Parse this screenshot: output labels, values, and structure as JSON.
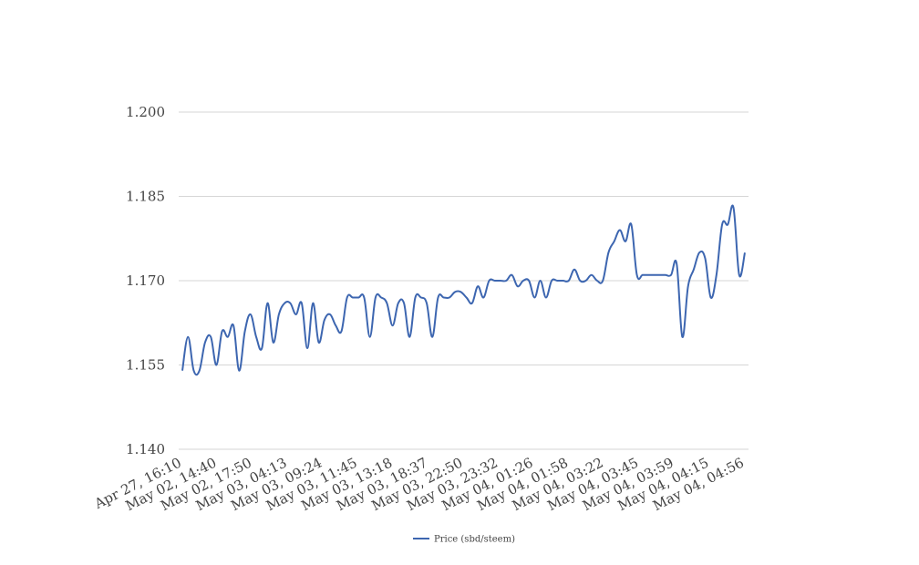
{
  "chart_data": {
    "type": "line",
    "title": "",
    "xlabel": "",
    "ylabel": "",
    "ylim": [
      1.14,
      1.2
    ],
    "y_ticks": [
      "1.140",
      "1.155",
      "1.170",
      "1.185",
      "1.200"
    ],
    "x_tick_labels": [
      "Apr 27, 16:10",
      "May 02, 14:40",
      "May 02, 17:50",
      "May 03, 04:13",
      "May 03, 09:24",
      "May 03, 11:45",
      "May 03, 13:18",
      "May 03, 18:37",
      "May 03, 22:50",
      "May 03, 23:32",
      "May 04, 01:26",
      "May 04, 01:58",
      "May 04, 03:22",
      "May 04, 03:45",
      "May 04, 03:59",
      "May 04, 04:15",
      "May 04, 04:56"
    ],
    "grid": true,
    "legend_position": "bottom-center",
    "series": [
      {
        "name": "Price (sbd/steem)",
        "color": "#3d66b0",
        "values": [
          1.154,
          1.16,
          1.154,
          1.154,
          1.159,
          1.16,
          1.155,
          1.161,
          1.16,
          1.162,
          1.154,
          1.161,
          1.164,
          1.16,
          1.158,
          1.166,
          1.159,
          1.164,
          1.166,
          1.166,
          1.164,
          1.166,
          1.158,
          1.166,
          1.159,
          1.163,
          1.164,
          1.162,
          1.161,
          1.167,
          1.167,
          1.167,
          1.167,
          1.16,
          1.167,
          1.167,
          1.166,
          1.162,
          1.166,
          1.166,
          1.16,
          1.167,
          1.167,
          1.166,
          1.16,
          1.167,
          1.167,
          1.167,
          1.168,
          1.168,
          1.167,
          1.166,
          1.169,
          1.167,
          1.17,
          1.17,
          1.17,
          1.17,
          1.171,
          1.169,
          1.17,
          1.17,
          1.167,
          1.17,
          1.167,
          1.17,
          1.17,
          1.17,
          1.17,
          1.172,
          1.17,
          1.17,
          1.171,
          1.17,
          1.17,
          1.175,
          1.177,
          1.179,
          1.177,
          1.18,
          1.171,
          1.171,
          1.171,
          1.171,
          1.171,
          1.171,
          1.171,
          1.173,
          1.16,
          1.169,
          1.172,
          1.175,
          1.174,
          1.167,
          1.171,
          1.18,
          1.18,
          1.183,
          1.171,
          1.175
        ]
      }
    ]
  }
}
